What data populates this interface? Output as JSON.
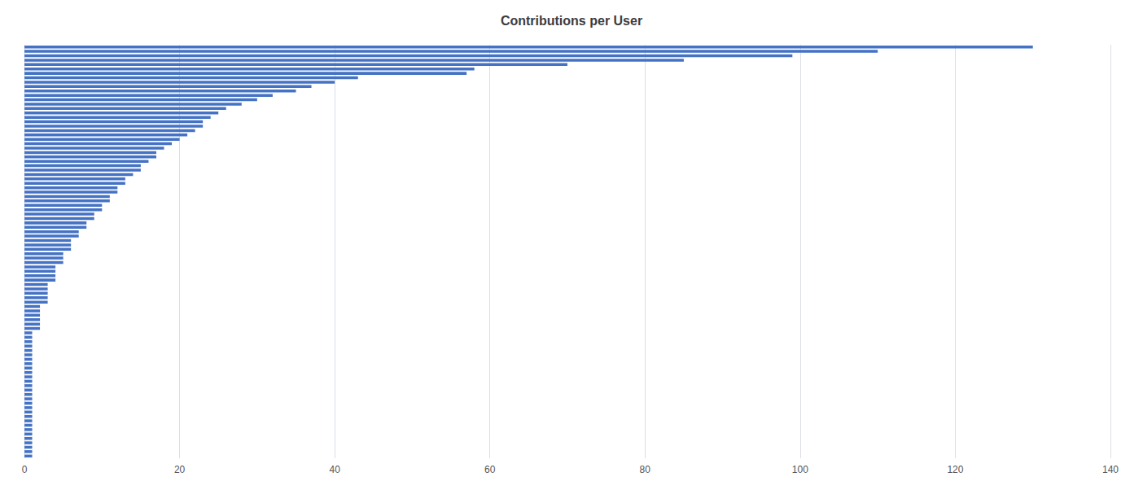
{
  "chart_data": {
    "type": "bar",
    "title": "Contributions per User",
    "orientation": "horizontal",
    "color": "#4472C4",
    "xlim": [
      0,
      140
    ],
    "xticks": [
      0,
      20,
      40,
      60,
      80,
      100,
      120,
      140
    ],
    "grid": true,
    "tick_labels": "x",
    "values": [
      1,
      1,
      1,
      1,
      1,
      1,
      1,
      1,
      1,
      1,
      1,
      1,
      1,
      1,
      1,
      1,
      1,
      1,
      1,
      1,
      1,
      1,
      1,
      1,
      1,
      1,
      1,
      1,
      1,
      2,
      2,
      2,
      2,
      2,
      2,
      3,
      3,
      3,
      3,
      3,
      4,
      4,
      4,
      4,
      5,
      5,
      5,
      6,
      6,
      6,
      7,
      7,
      8,
      8,
      9,
      9,
      10,
      10,
      11,
      11,
      12,
      12,
      13,
      13,
      14,
      15,
      15,
      16,
      17,
      17,
      18,
      19,
      20,
      21,
      22,
      23,
      23,
      24,
      25,
      26,
      28,
      30,
      32,
      35,
      37,
      40,
      43,
      57,
      58,
      70,
      85,
      99,
      110,
      130
    ]
  }
}
